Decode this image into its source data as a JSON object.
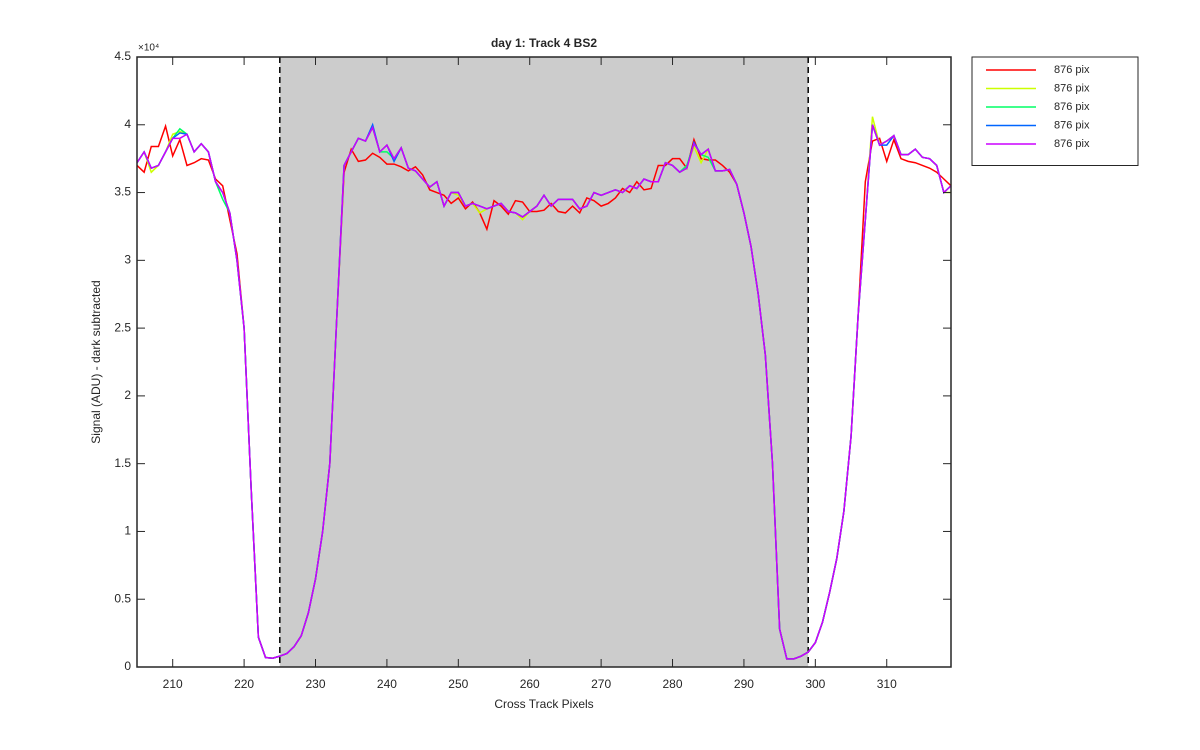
{
  "chart_data": {
    "type": "line",
    "title": "day 1: Track 4  BS2",
    "xlabel": "Cross Track Pixels",
    "ylabel": "Signal (ADU) - dark subtracted",
    "y_exponent": "×10⁴",
    "x": [
      205,
      206,
      207,
      208,
      209,
      210,
      211,
      212,
      213,
      214,
      215,
      216,
      217,
      218,
      219,
      220,
      221,
      222,
      223,
      224,
      225,
      226,
      227,
      228,
      229,
      230,
      231,
      232,
      233,
      234,
      235,
      236,
      237,
      238,
      239,
      240,
      241,
      242,
      243,
      244,
      245,
      246,
      247,
      248,
      249,
      250,
      251,
      252,
      253,
      254,
      255,
      256,
      257,
      258,
      259,
      260,
      261,
      262,
      263,
      264,
      265,
      266,
      267,
      268,
      269,
      270,
      271,
      272,
      273,
      274,
      275,
      276,
      277,
      278,
      279,
      280,
      281,
      282,
      283,
      284,
      285,
      286,
      287,
      288,
      289,
      290,
      291,
      292,
      293,
      294,
      295,
      296,
      297,
      298,
      299,
      300,
      301,
      302,
      303,
      304,
      305,
      306,
      307,
      308,
      309,
      310,
      311,
      312,
      313,
      314,
      315,
      316,
      317,
      318,
      319
    ],
    "series": [
      {
        "name": "876 pix",
        "color": "#ff0000",
        "values": [
          37000,
          36500,
          38400,
          38400,
          39900,
          37700,
          38900,
          37000,
          37200,
          37500,
          37400,
          36000,
          35500,
          33000,
          30500,
          25000,
          13000,
          2200,
          700,
          650,
          800,
          1000,
          1500,
          2300,
          4000,
          6500,
          10000,
          15000,
          26000,
          36500,
          38200,
          37300,
          37400,
          37900,
          37600,
          37100,
          37100,
          36900,
          36600,
          36900,
          36300,
          35200,
          35000,
          34800,
          34200,
          34600,
          33800,
          34300,
          33500,
          32300,
          34400,
          34000,
          33400,
          34400,
          34300,
          33600,
          33600,
          33700,
          34200,
          33600,
          33500,
          34000,
          33500,
          34600,
          34400,
          34000,
          34200,
          34600,
          35300,
          35000,
          35800,
          35200,
          35300,
          37000,
          37000,
          37500,
          37500,
          36800,
          38900,
          37500,
          37400,
          37400,
          37000,
          36500,
          35600,
          33500,
          31000,
          27500,
          23000,
          15000,
          2800,
          600,
          600,
          800,
          1100,
          1800,
          3300,
          5500,
          8000,
          11500,
          17000,
          26000,
          35800,
          38800,
          39000,
          37300,
          38900,
          37500,
          37300,
          37200,
          37000,
          36800,
          36500,
          36000,
          35500
        ]
      },
      {
        "name": "876 pix",
        "color": "#ccff00",
        "values": [
          37200,
          38000,
          36500,
          37000,
          38000,
          39300,
          39500,
          39300,
          38000,
          38600,
          38000,
          35800,
          35000,
          33500,
          30000,
          25000,
          13000,
          2200,
          700,
          650,
          800,
          1000,
          1500,
          2300,
          4000,
          6500,
          10000,
          15000,
          26000,
          37000,
          38000,
          39000,
          38800,
          39800,
          38000,
          38500,
          37500,
          38300,
          36800,
          36600,
          36000,
          35400,
          35800,
          34000,
          35000,
          34800,
          34000,
          34200,
          33500,
          33800,
          34000,
          34200,
          33600,
          33500,
          33000,
          33600,
          34000,
          34800,
          34000,
          34500,
          34500,
          34500,
          33800,
          34000,
          35000,
          34800,
          35000,
          35200,
          35000,
          35500,
          35300,
          36000,
          35800,
          35800,
          37200,
          37000,
          36500,
          36800,
          38400,
          37200,
          38200,
          36600,
          36600,
          36700,
          35600,
          33500,
          31000,
          27500,
          23000,
          15000,
          2800,
          600,
          600,
          800,
          1100,
          1800,
          3300,
          5500,
          8000,
          11500,
          17000,
          26000,
          33000,
          40600,
          38500,
          38800,
          39200,
          37800,
          37800,
          38200,
          37600,
          37500,
          37000,
          35000,
          35000
        ]
      },
      {
        "name": "876 pix",
        "color": "#00ff66",
        "values": [
          37200,
          38000,
          36800,
          37000,
          38000,
          39000,
          39700,
          39300,
          38000,
          38600,
          38000,
          35800,
          34500,
          33500,
          30000,
          25000,
          13000,
          2200,
          700,
          650,
          800,
          1000,
          1500,
          2300,
          4000,
          6500,
          10000,
          15000,
          26000,
          37000,
          38000,
          39000,
          38800,
          39800,
          38000,
          38000,
          37500,
          38300,
          36800,
          36600,
          36000,
          35400,
          35800,
          34000,
          35000,
          35000,
          34000,
          34200,
          34000,
          33800,
          34000,
          34200,
          33600,
          33500,
          33200,
          33600,
          34000,
          34800,
          34000,
          34500,
          34500,
          34500,
          33800,
          34000,
          35000,
          34800,
          35000,
          35200,
          35000,
          35500,
          35300,
          36000,
          35800,
          35800,
          37200,
          37000,
          36500,
          37000,
          38600,
          37800,
          37600,
          36600,
          36600,
          36700,
          35600,
          33500,
          31000,
          27500,
          23000,
          15000,
          2800,
          600,
          600,
          800,
          1100,
          1800,
          3300,
          5500,
          8000,
          11500,
          17000,
          26000,
          33000,
          40000,
          38500,
          38800,
          39200,
          37800,
          37800,
          38200,
          37600,
          37500,
          37000,
          35000,
          35500
        ]
      },
      {
        "name": "876 pix",
        "color": "#0066ff",
        "values": [
          37200,
          38000,
          36800,
          37000,
          38000,
          39000,
          39400,
          39300,
          38000,
          38600,
          38000,
          35800,
          35000,
          33500,
          30000,
          25000,
          13000,
          2200,
          700,
          650,
          800,
          1000,
          1500,
          2300,
          4000,
          6500,
          10000,
          15000,
          26000,
          37000,
          38000,
          39000,
          38800,
          40000,
          38000,
          38500,
          37300,
          38300,
          36800,
          36600,
          36000,
          35400,
          35800,
          34000,
          35000,
          35000,
          34000,
          34200,
          34000,
          33800,
          34000,
          34200,
          33600,
          33500,
          33200,
          33600,
          34000,
          34800,
          34000,
          34500,
          34500,
          34500,
          33800,
          34000,
          35000,
          34800,
          35000,
          35200,
          35000,
          35500,
          35300,
          36000,
          35800,
          35800,
          37200,
          37000,
          36500,
          36800,
          38700,
          37800,
          38200,
          36600,
          36600,
          36700,
          35600,
          33500,
          31000,
          27500,
          23000,
          15000,
          2800,
          600,
          600,
          800,
          1100,
          1800,
          3300,
          5500,
          8000,
          11500,
          17000,
          26000,
          33000,
          40000,
          38500,
          38500,
          39200,
          37800,
          37800,
          38200,
          37600,
          37500,
          37000,
          35000,
          35500
        ]
      },
      {
        "name": "876 pix",
        "color": "#cc00ff",
        "values": [
          37200,
          38000,
          36800,
          37000,
          38000,
          39000,
          39000,
          39300,
          38000,
          38600,
          38000,
          35800,
          35000,
          33500,
          30000,
          25000,
          13000,
          2200,
          700,
          650,
          800,
          1000,
          1500,
          2300,
          4000,
          6500,
          10000,
          15000,
          26000,
          37000,
          38000,
          39000,
          38800,
          39800,
          38000,
          38500,
          37500,
          38300,
          36800,
          36600,
          36000,
          35400,
          35800,
          34000,
          35000,
          35000,
          34000,
          34200,
          34000,
          33800,
          34000,
          34200,
          33600,
          33500,
          33200,
          33600,
          34000,
          34800,
          34000,
          34500,
          34500,
          34500,
          33800,
          34000,
          35000,
          34800,
          35000,
          35200,
          35000,
          35500,
          35300,
          36000,
          35800,
          35800,
          37200,
          37000,
          36500,
          36800,
          38600,
          37800,
          38200,
          36600,
          36600,
          36700,
          35600,
          33500,
          31000,
          27500,
          23000,
          15000,
          2800,
          600,
          600,
          800,
          1100,
          1800,
          3300,
          5500,
          8000,
          11500,
          17000,
          26000,
          33000,
          40000,
          38500,
          38800,
          39200,
          37800,
          37800,
          38200,
          37600,
          37500,
          37000,
          35000,
          35500
        ]
      }
    ],
    "xlim": [
      205,
      319
    ],
    "ylim": [
      0,
      45000
    ],
    "xticks": [
      210,
      220,
      230,
      240,
      250,
      260,
      270,
      280,
      290,
      300,
      310
    ],
    "yticks": [
      0,
      {
        "value": 5000,
        "label": "0.5"
      },
      {
        "value": 10000,
        "label": "1"
      },
      {
        "value": 15000,
        "label": "1.5"
      },
      {
        "value": 20000,
        "label": "2"
      },
      {
        "value": 25000,
        "label": "2.5"
      },
      {
        "value": 30000,
        "label": "3"
      },
      {
        "value": 35000,
        "label": "3.5"
      },
      {
        "value": 40000,
        "label": "4"
      },
      {
        "value": 45000,
        "label": "4.5"
      }
    ],
    "highlight": {
      "xrange": [
        225,
        299
      ],
      "color": "#cccccc"
    },
    "legend": "northeastoutside",
    "grid": false
  }
}
